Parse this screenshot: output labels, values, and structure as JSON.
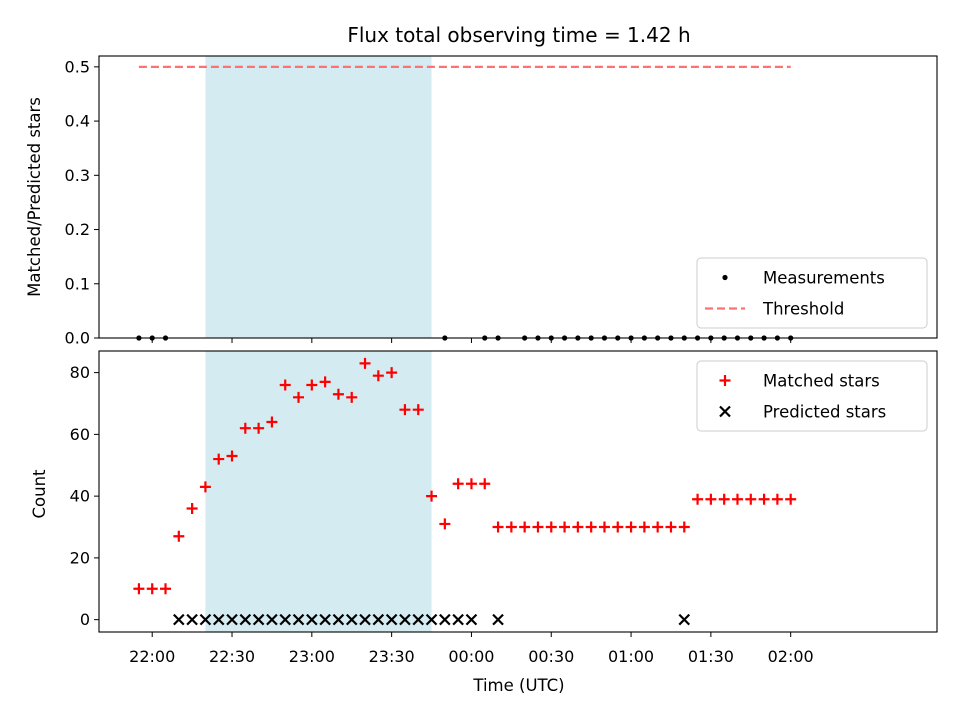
{
  "chart_data": [
    {
      "type": "scatter",
      "title": "Flux total observing time = 1.42 h",
      "xlabel": "",
      "ylabel": "Matched/Predicted stars",
      "xlim": [
        -20,
        295
      ],
      "ylim": [
        0,
        0.52
      ],
      "yticks": [
        "0.0",
        "0.1",
        "0.2",
        "0.3",
        "0.4",
        "0.5"
      ],
      "ytick_values": [
        0,
        0.1,
        0.2,
        0.3,
        0.4,
        0.5
      ],
      "shaded_region": [
        20,
        105
      ],
      "shade_color": "#add8e6",
      "threshold": {
        "name": "Threshold",
        "value": 0.5,
        "x_range": [
          -5,
          240
        ],
        "color": "#ff7070"
      },
      "series": [
        {
          "name": "Measurements",
          "marker": "dot",
          "color": "#000000",
          "x": [
            -5,
            0,
            5,
            110,
            125,
            130,
            140,
            145,
            150,
            155,
            160,
            165,
            170,
            175,
            180,
            185,
            190,
            195,
            200,
            205,
            210,
            215,
            220,
            225,
            230,
            235,
            240
          ],
          "y": [
            0,
            0,
            0,
            0,
            0,
            0,
            0,
            0,
            0,
            0,
            0,
            0,
            0,
            0,
            0,
            0,
            0,
            0,
            0,
            0,
            0,
            0,
            0,
            0,
            0,
            0,
            0
          ]
        }
      ],
      "legend": {
        "placement": "lower-right",
        "entries": [
          "Measurements",
          "Threshold"
        ]
      }
    },
    {
      "type": "scatter",
      "title": "",
      "xlabel": "Time (UTC)",
      "ylabel": "Count",
      "xlim": [
        -20,
        295
      ],
      "ylim": [
        -4,
        87
      ],
      "yticks": [
        "0",
        "20",
        "40",
        "60",
        "80"
      ],
      "ytick_values": [
        0,
        20,
        40,
        60,
        80
      ],
      "xticks": [
        "22:00",
        "22:30",
        "23:00",
        "23:30",
        "00:00",
        "00:30",
        "01:00",
        "01:30",
        "02:00"
      ],
      "xtick_values": [
        0,
        30,
        60,
        90,
        120,
        150,
        180,
        210,
        240
      ],
      "shaded_region": [
        20,
        105
      ],
      "shade_color": "#add8e6",
      "series": [
        {
          "name": "Matched stars",
          "marker": "plus",
          "color": "#ff0000",
          "x": [
            -5,
            0,
            5,
            10,
            15,
            20,
            25,
            30,
            35,
            40,
            45,
            50,
            55,
            60,
            65,
            70,
            75,
            80,
            85,
            90,
            95,
            100,
            105,
            110,
            115,
            120,
            125,
            130,
            135,
            140,
            145,
            150,
            155,
            160,
            165,
            170,
            175,
            180,
            185,
            190,
            195,
            200,
            205,
            210,
            215,
            220,
            225,
            230,
            235,
            240
          ],
          "y": [
            10,
            10,
            10,
            27,
            36,
            43,
            52,
            53,
            62,
            62,
            64,
            76,
            72,
            76,
            77,
            73,
            72,
            83,
            79,
            80,
            68,
            68,
            40,
            31,
            44,
            44,
            44,
            30,
            30,
            30,
            30,
            30,
            30,
            30,
            30,
            30,
            30,
            30,
            30,
            30,
            30,
            30,
            39,
            39,
            39,
            39,
            39,
            39,
            39,
            39
          ]
        },
        {
          "name": "Predicted stars",
          "marker": "x",
          "color": "#000000",
          "x": [
            10,
            15,
            20,
            25,
            30,
            35,
            40,
            45,
            50,
            55,
            60,
            65,
            70,
            75,
            80,
            85,
            90,
            95,
            100,
            105,
            110,
            115,
            120,
            130,
            200
          ],
          "y": [
            0,
            0,
            0,
            0,
            0,
            0,
            0,
            0,
            0,
            0,
            0,
            0,
            0,
            0,
            0,
            0,
            0,
            0,
            0,
            0,
            0,
            0,
            0,
            0,
            0
          ]
        }
      ],
      "legend": {
        "placement": "upper-right",
        "entries": [
          "Matched stars",
          "Predicted stars"
        ]
      }
    }
  ]
}
